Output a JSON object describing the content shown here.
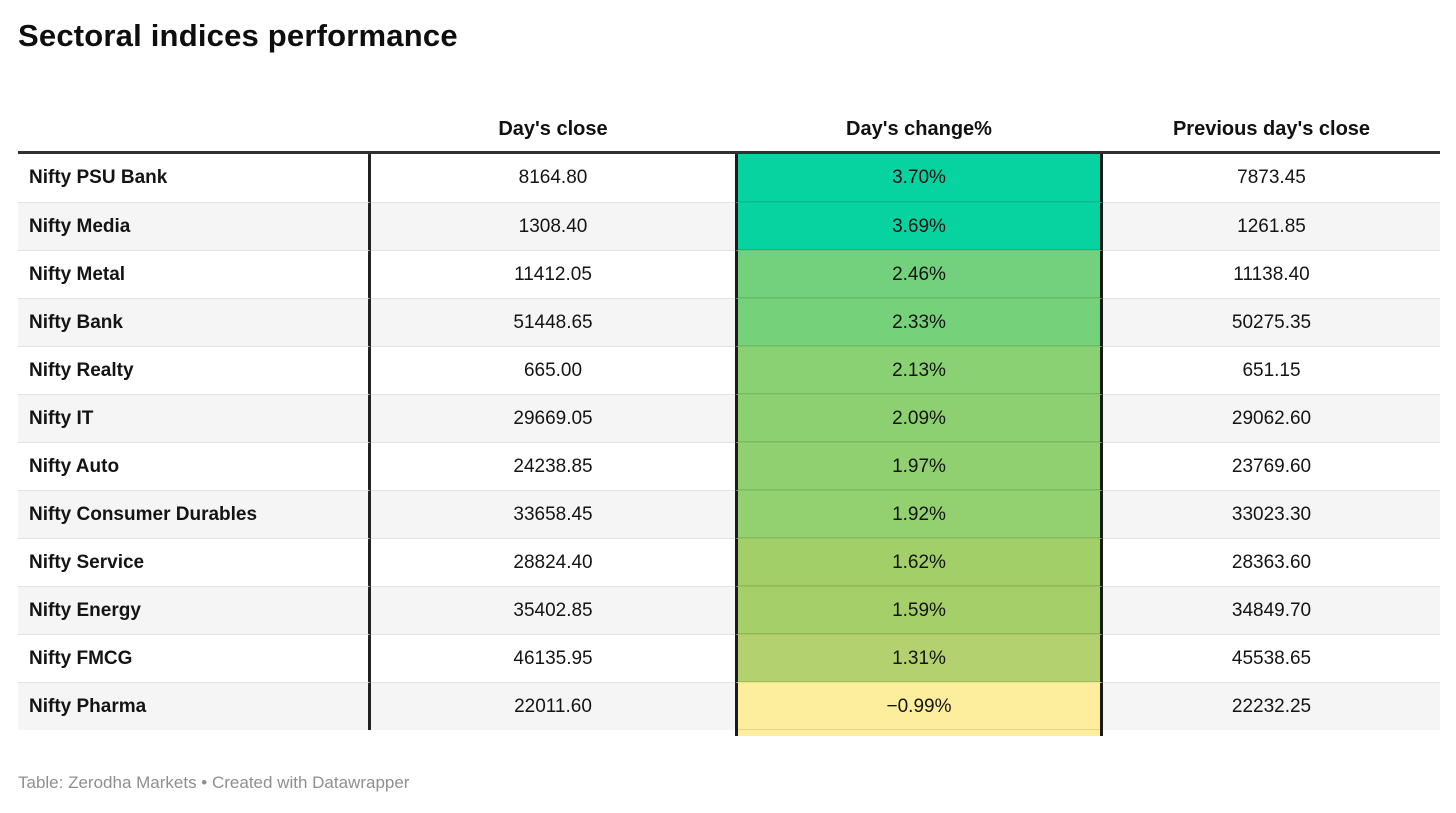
{
  "title": "Sectoral indices performance",
  "table": {
    "columns": [
      "Day's close",
      "Day's change%",
      "Previous day's close"
    ],
    "rows": [
      {
        "label": "Nifty PSU Bank",
        "close": "8164.80",
        "change": "3.70%",
        "prev_close": "7873.45",
        "change_color": "#06d3a0"
      },
      {
        "label": "Nifty Media",
        "close": "1308.40",
        "change": "3.69%",
        "prev_close": "1261.85",
        "change_color": "#07d3a0"
      },
      {
        "label": "Nifty Metal",
        "close": "11412.05",
        "change": "2.46%",
        "prev_close": "11138.40",
        "change_color": "#73d17d"
      },
      {
        "label": "Nifty Bank",
        "close": "51448.65",
        "change": "2.33%",
        "prev_close": "50275.35",
        "change_color": "#76d17b"
      },
      {
        "label": "Nifty Realty",
        "close": "665.00",
        "change": "2.13%",
        "prev_close": "651.15",
        "change_color": "#8ad173"
      },
      {
        "label": "Nifty IT",
        "close": "29669.05",
        "change": "2.09%",
        "prev_close": "29062.60",
        "change_color": "#8cd072"
      },
      {
        "label": "Nifty Auto",
        "close": "24238.85",
        "change": "1.97%",
        "prev_close": "23769.60",
        "change_color": "#90d071"
      },
      {
        "label": "Nifty Consumer Durables",
        "close": "33658.45",
        "change": "1.92%",
        "prev_close": "33023.30",
        "change_color": "#92d070"
      },
      {
        "label": "Nifty Service",
        "close": "28824.40",
        "change": "1.62%",
        "prev_close": "28363.60",
        "change_color": "#a3cf69"
      },
      {
        "label": "Nifty Energy",
        "close": "35402.85",
        "change": "1.59%",
        "prev_close": "34849.70",
        "change_color": "#a5cf68"
      },
      {
        "label": "Nifty FMCG",
        "close": "46135.95",
        "change": "1.31%",
        "prev_close": "45538.65",
        "change_color": "#b3d16e"
      },
      {
        "label": "Nifty Pharma",
        "close": "22011.60",
        "change": "−0.99%",
        "prev_close": "22232.25",
        "change_color": "#fdee9d"
      }
    ]
  },
  "footer": {
    "text": "Table: Zerodha Markets • Created with Datawrapper"
  },
  "colors": {
    "header_rule": "#303030",
    "column_divider": "#222222",
    "change_column_border": "#1a1a1a",
    "alt_row_bg": "#f5f5f5",
    "row_separator": "#e3e3e3",
    "footer_text": "#8f8f8f",
    "change_scale_max": "#06d3a0",
    "change_scale_min": "#fdee9d"
  },
  "chart_data": {
    "type": "table",
    "title": "Sectoral indices performance",
    "columns": [
      "Day's close",
      "Day's change%",
      "Previous day's close"
    ],
    "row_labels": [
      "Nifty PSU Bank",
      "Nifty Media",
      "Nifty Metal",
      "Nifty Bank",
      "Nifty Realty",
      "Nifty IT",
      "Nifty Auto",
      "Nifty Consumer Durables",
      "Nifty Service",
      "Nifty Energy",
      "Nifty FMCG",
      "Nifty Pharma"
    ],
    "series": [
      {
        "name": "Day's close",
        "values": [
          8164.8,
          1308.4,
          11412.05,
          51448.65,
          665.0,
          29669.05,
          24238.85,
          33658.45,
          28824.4,
          35402.85,
          46135.95,
          22011.6
        ]
      },
      {
        "name": "Day's change%",
        "values": [
          3.7,
          3.69,
          2.46,
          2.33,
          2.13,
          2.09,
          1.97,
          1.92,
          1.62,
          1.59,
          1.31,
          -0.99
        ]
      },
      {
        "name": "Previous day's close",
        "values": [
          7873.45,
          1261.85,
          11138.4,
          50275.35,
          651.15,
          29062.6,
          23769.6,
          33023.3,
          28363.6,
          34849.7,
          45538.65,
          22232.25
        ]
      }
    ],
    "layout_hints": {
      "change_column_heatmap": "green (high) to pale yellow (negative)",
      "sorted_by": "Day's change% descending"
    },
    "source": "Table: Zerodha Markets",
    "credit": "Created with Datawrapper"
  }
}
